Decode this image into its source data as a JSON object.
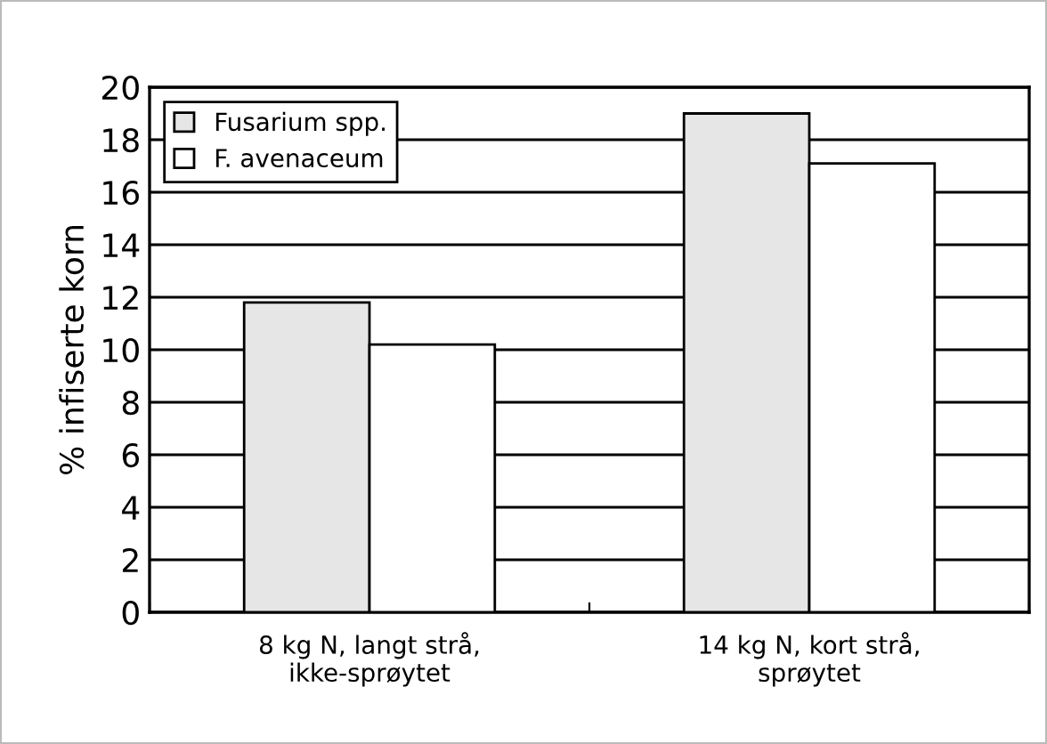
{
  "chart_data": {
    "type": "bar",
    "ylabel": "% infiserte korn",
    "categories": [
      "8 kg N, langt strå,\nikke-sprøytet",
      "14 kg N, kort strå,\nsprøytet"
    ],
    "series": [
      {
        "name": "Fusarium spp.",
        "color": "#e6e6e6",
        "values": [
          11.8,
          19.0
        ]
      },
      {
        "name": "F. avenaceum",
        "color": "#ffffff",
        "values": [
          10.2,
          17.1
        ]
      }
    ],
    "ylim": [
      0,
      20
    ],
    "yticks": [
      0,
      2,
      4,
      6,
      8,
      10,
      12,
      14,
      16,
      18,
      20
    ],
    "grid": "y",
    "legend": "top left"
  }
}
